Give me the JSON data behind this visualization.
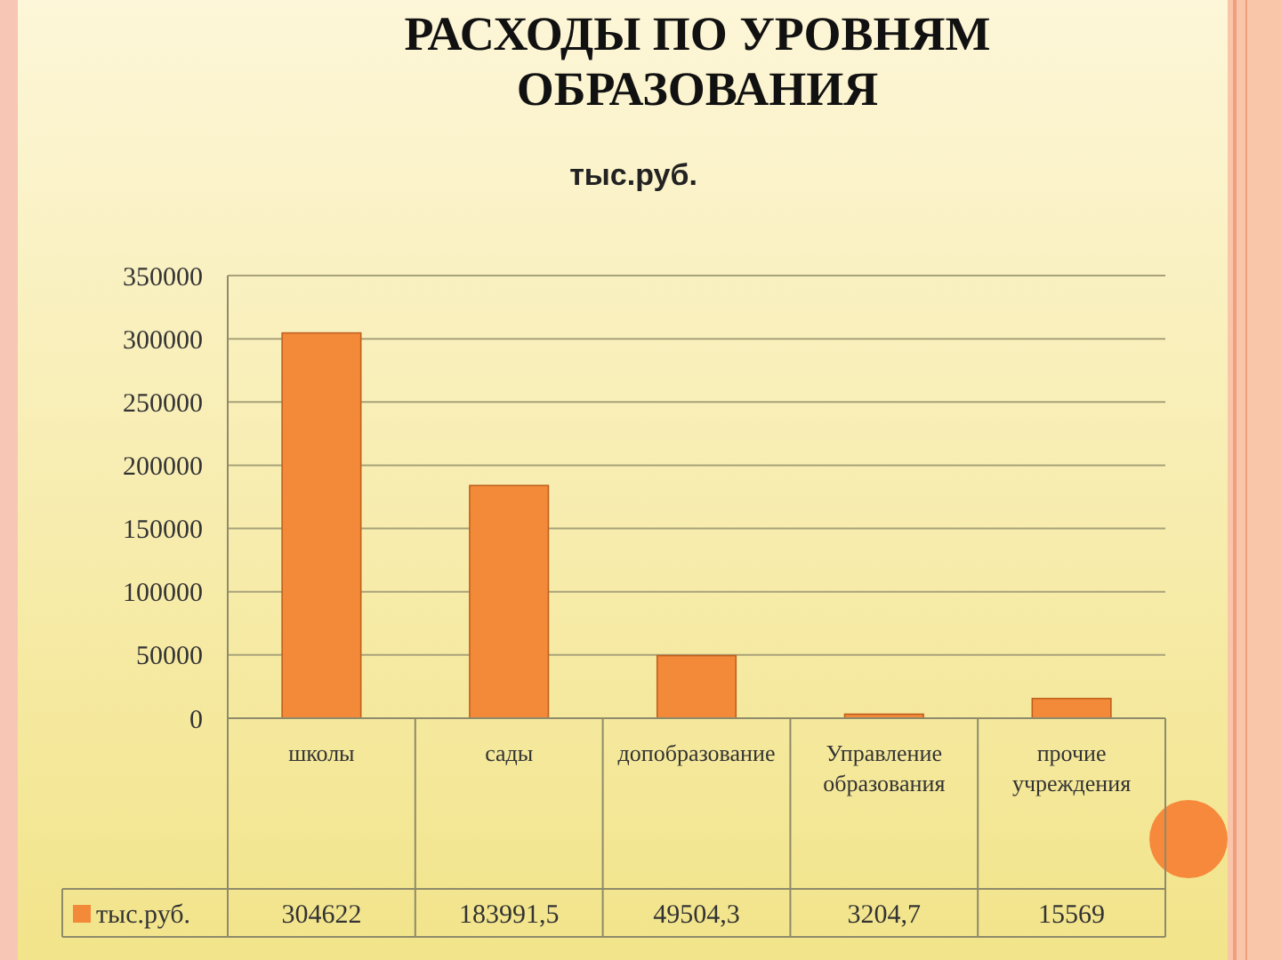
{
  "chart_data": {
    "type": "bar",
    "title": "РАСХОДЫ ПО УРОВНЯМ ОБРАЗОВАНИЯ",
    "subtitle": "тыс.руб.",
    "categories": [
      "школы",
      "сады",
      "допобразование",
      "Управление образования",
      "прочие учреждения"
    ],
    "series": [
      {
        "name": "тыс.руб.",
        "color": "#f28a3a",
        "values": [
          304622,
          183991.5,
          49504.3,
          3204.7,
          15569
        ],
        "value_labels": [
          "304622",
          "183991,5",
          "49504,3",
          "3204,7",
          "15569"
        ]
      }
    ],
    "ylim": [
      0,
      350000
    ],
    "yticks": [
      0,
      50000,
      100000,
      150000,
      200000,
      250000,
      300000,
      350000
    ],
    "grid": "y",
    "legend": "bottom left"
  }
}
